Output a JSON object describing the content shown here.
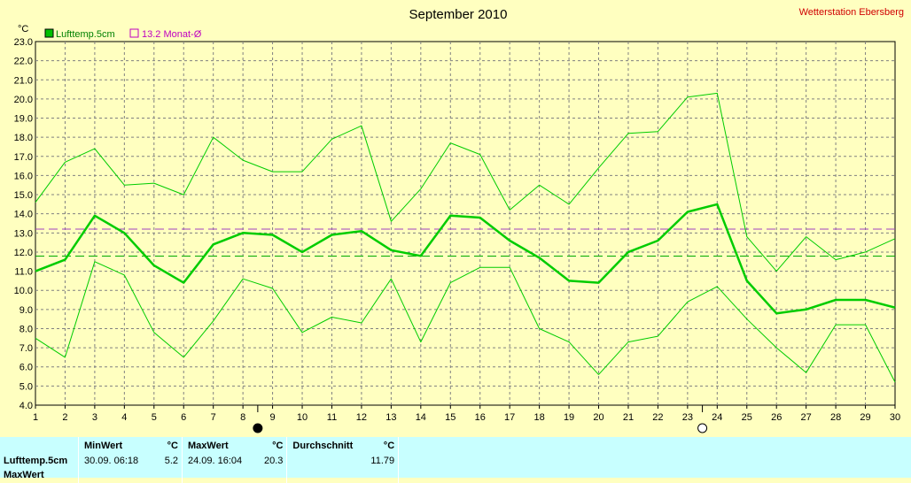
{
  "chart_data": {
    "type": "line",
    "title": "September 2010",
    "station": "Wetterstation Ebersberg",
    "ylabel": "°C",
    "ylim": [
      4.0,
      23.0
    ],
    "yticks": [
      "4.0",
      "5.0",
      "6.0",
      "7.0",
      "8.0",
      "9.0",
      "10.0",
      "11.0",
      "12.0",
      "13.0",
      "14.0",
      "15.0",
      "16.0",
      "17.0",
      "18.0",
      "19.0",
      "20.0",
      "21.0",
      "22.0",
      "23.0"
    ],
    "x": [
      1,
      2,
      3,
      4,
      5,
      6,
      7,
      8,
      9,
      10,
      11,
      12,
      13,
      14,
      15,
      16,
      17,
      18,
      19,
      20,
      21,
      22,
      23,
      24,
      25,
      26,
      27,
      28,
      29,
      30
    ],
    "grid": true,
    "legend": [
      {
        "label": "Lufttemp.5cm",
        "color": "#00c000"
      },
      {
        "label": "13.2 Monat-Ø",
        "color": "#c000c0"
      }
    ],
    "series": [
      {
        "name": "Lufttemp.5cm",
        "role": "mean",
        "color": "#00cc00",
        "values": [
          11.0,
          11.6,
          13.9,
          13.0,
          11.3,
          10.4,
          12.4,
          13.0,
          12.9,
          12.0,
          12.9,
          13.1,
          12.1,
          11.8,
          13.9,
          13.8,
          12.6,
          11.7,
          10.5,
          10.4,
          12.0,
          12.6,
          14.1,
          14.5,
          10.5,
          8.8,
          9.0,
          9.5,
          9.5,
          9.1
        ]
      },
      {
        "role": "max",
        "color": "#00cc00",
        "values": [
          14.6,
          16.7,
          17.4,
          15.5,
          15.6,
          15.0,
          18.0,
          16.8,
          16.2,
          16.2,
          17.9,
          18.6,
          13.6,
          15.3,
          17.7,
          17.1,
          14.2,
          15.5,
          14.5,
          16.4,
          18.2,
          18.3,
          20.1,
          20.3,
          12.8,
          11.0,
          12.8,
          11.6,
          12.0,
          12.7
        ]
      },
      {
        "role": "min",
        "color": "#00cc00",
        "values": [
          7.5,
          6.5,
          11.5,
          10.8,
          7.8,
          6.5,
          8.4,
          10.6,
          10.1,
          7.8,
          8.6,
          8.3,
          10.6,
          7.3,
          10.4,
          11.2,
          11.2,
          8.0,
          7.3,
          5.6,
          7.3,
          7.6,
          9.4,
          10.2,
          8.5,
          7.0,
          5.7,
          8.2,
          8.2,
          5.2
        ]
      }
    ],
    "reference_lines": [
      {
        "value": 13.2,
        "color": "#a040c0",
        "style": "dashed"
      },
      {
        "value": 11.79,
        "color": "#00aa00",
        "style": "dashed"
      }
    ],
    "moon_phases": [
      {
        "day": 8.5,
        "type": "new"
      },
      {
        "day": 23.5,
        "type": "full"
      }
    ]
  },
  "stats": {
    "header": {
      "min": "MinWert",
      "max": "MaxWert",
      "avg": "Durchschnitt",
      "unit": "°C"
    },
    "rows": [
      {
        "label": "Lufttemp.5cm",
        "min_time": "30.09.  06:18",
        "min_val": "5.2",
        "max_time": "24.09.  16:04",
        "max_val": "20.3",
        "avg": "11.79"
      }
    ],
    "partial_label": "MaxWert"
  }
}
